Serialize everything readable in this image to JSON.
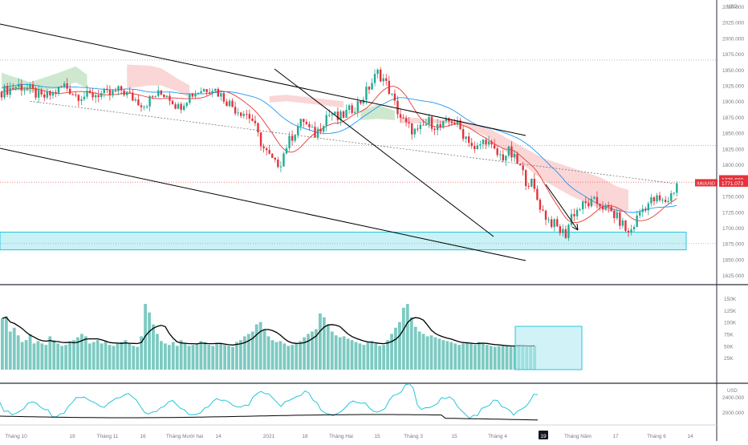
{
  "chart_data": {
    "type": "candlestick",
    "symbol": "XAUUSD",
    "currency": "USD",
    "colors": {
      "up": "#22ab94",
      "down": "#e5323b",
      "cloud_bull": "#a5d6a7",
      "cloud_bear": "#f7b5b5",
      "kijun": "#e53935",
      "tenkan": "#2196f3",
      "zone": "#b2ebf2",
      "zone_border": "#26c6da",
      "volume": "#26a69a",
      "volume_ma": "#000000",
      "osc_cyan": "#26c6da",
      "osc_black": "#000000",
      "trend": "#000000"
    },
    "price_axis": {
      "ylim": [
        1610,
        2060
      ],
      "ticks": [
        "2050.000",
        "2025.000",
        "2000.000",
        "1975.000",
        "1950.000",
        "1925.000",
        "1900.000",
        "1875.000",
        "1850.000",
        "1825.000",
        "1800.000",
        "1775.000",
        "1750.000",
        "1725.000",
        "1700.000",
        "1675.000",
        "1650.000",
        "1625.000"
      ],
      "last_price_label": "1776.680",
      "symbol_label": "XAUUSD",
      "secondary_label": "1771.073"
    },
    "volume_axis": {
      "ylim": [
        0,
        160000
      ],
      "ticks": [
        "150K",
        "125K",
        "100K",
        "75K",
        "50K",
        "25K"
      ]
    },
    "osc_axis": {
      "unit_label": "USD",
      "ticks": [
        "2400.000",
        "2000.000"
      ]
    },
    "x_axis": {
      "ticks": [
        "Tháng 10",
        "19",
        "Tháng 11",
        "16",
        "Tháng Mười hai",
        "14",
        "2021",
        "18",
        "Tháng Hai",
        "15",
        "Tháng 3",
        "15",
        "Tháng 4",
        "19",
        "Tháng Năm",
        "17",
        "Tháng 6",
        "14"
      ],
      "highlighted_tick": "19"
    },
    "price_path": [
      [
        0,
        1915
      ],
      [
        6,
        1925
      ],
      [
        10,
        1918
      ],
      [
        14,
        1905
      ],
      [
        18,
        1912
      ],
      [
        22,
        1925
      ],
      [
        26,
        1910
      ],
      [
        30,
        1908
      ],
      [
        34,
        1912
      ],
      [
        38,
        1910
      ],
      [
        42,
        1918
      ],
      [
        46,
        1905
      ],
      [
        50,
        1895
      ],
      [
        54,
        1910
      ],
      [
        58,
        1912
      ],
      [
        62,
        1890
      ],
      [
        66,
        1910
      ],
      [
        70,
        1918
      ],
      [
        74,
        1922
      ],
      [
        78,
        1905
      ],
      [
        82,
        1888
      ],
      [
        86,
        1880
      ],
      [
        88,
        1870
      ],
      [
        90,
        1845
      ],
      [
        92,
        1825
      ],
      [
        94,
        1812
      ],
      [
        96,
        1800
      ],
      [
        98,
        1805
      ],
      [
        100,
        1830
      ],
      [
        102,
        1845
      ],
      [
        104,
        1860
      ],
      [
        106,
        1870
      ],
      [
        108,
        1855
      ],
      [
        110,
        1848
      ],
      [
        112,
        1860
      ],
      [
        114,
        1878
      ],
      [
        116,
        1880
      ],
      [
        118,
        1872
      ],
      [
        120,
        1878
      ],
      [
        122,
        1885
      ],
      [
        124,
        1892
      ],
      [
        126,
        1900
      ],
      [
        128,
        1915
      ],
      [
        130,
        1930
      ],
      [
        132,
        1945
      ],
      [
        134,
        1935
      ],
      [
        136,
        1918
      ],
      [
        138,
        1895
      ],
      [
        140,
        1875
      ],
      [
        142,
        1862
      ],
      [
        144,
        1855
      ],
      [
        146,
        1850
      ],
      [
        148,
        1860
      ],
      [
        150,
        1868
      ],
      [
        152,
        1862
      ],
      [
        154,
        1858
      ],
      [
        156,
        1865
      ],
      [
        158,
        1870
      ],
      [
        160,
        1862
      ],
      [
        162,
        1848
      ],
      [
        164,
        1840
      ],
      [
        166,
        1820
      ],
      [
        168,
        1832
      ],
      [
        170,
        1840
      ],
      [
        172,
        1825
      ],
      [
        174,
        1815
      ],
      [
        176,
        1812
      ],
      [
        178,
        1820
      ],
      [
        180,
        1808
      ],
      [
        182,
        1795
      ],
      [
        184,
        1775
      ],
      [
        186,
        1770
      ],
      [
        188,
        1745
      ],
      [
        190,
        1725
      ],
      [
        192,
        1712
      ],
      [
        194,
        1705
      ],
      [
        196,
        1695
      ],
      [
        198,
        1690
      ],
      [
        200,
        1720
      ],
      [
        202,
        1728
      ],
      [
        204,
        1735
      ],
      [
        206,
        1738
      ],
      [
        208,
        1740
      ],
      [
        210,
        1738
      ],
      [
        212,
        1730
      ],
      [
        214,
        1725
      ],
      [
        216,
        1715
      ],
      [
        218,
        1705
      ],
      [
        220,
        1690
      ],
      [
        222,
        1705
      ],
      [
        224,
        1725
      ],
      [
        226,
        1735
      ],
      [
        228,
        1742
      ],
      [
        230,
        1745
      ],
      [
        232,
        1740
      ],
      [
        234,
        1745
      ],
      [
        236,
        1760
      ],
      [
        237,
        1772
      ]
    ],
    "volume": [
      108000,
      112000,
      80000,
      88000,
      72000,
      58000,
      62000,
      75000,
      55000,
      60000,
      55000,
      52000,
      70000,
      62000,
      55000,
      50000,
      52000,
      58000,
      62000,
      68000,
      75000,
      70000,
      55000,
      58000,
      62000,
      55000,
      60000,
      52000,
      50000,
      55000,
      58000,
      62000,
      55000,
      50000,
      48000,
      70000,
      138000,
      120000,
      95000,
      75000,
      60000,
      55000,
      52000,
      58000,
      50000,
      62000,
      55000,
      50000,
      52000,
      55000,
      60000,
      58000,
      52000,
      50000,
      55000,
      55000,
      52000,
      50000,
      48000,
      58000,
      62000,
      70000,
      75000,
      80000,
      95000,
      100000,
      85000,
      70000,
      62000,
      58000,
      60000,
      55000,
      50000,
      52000,
      55000,
      60000,
      68000,
      75000,
      80000,
      85000,
      118000,
      110000,
      95000,
      80000,
      72000,
      68000,
      70000,
      65000,
      62000,
      58000,
      55000,
      52000,
      58000,
      60000,
      55000,
      50000,
      52000,
      62000,
      75000,
      88000,
      100000,
      130000,
      138000,
      110000,
      90000,
      80000,
      75000,
      70000,
      72000,
      68000,
      65000,
      62000,
      60000,
      58000,
      55000,
      52000,
      55000,
      58000,
      55000,
      52000,
      58000,
      55000,
      52000,
      50000,
      48000,
      50000,
      52000,
      50000,
      48000,
      50000,
      52000,
      50000,
      48000,
      50000,
      50000
    ],
    "annotations": [
      "descending channel",
      "falling trendline",
      "ichimoku cloud",
      "projected down arrow",
      "support zone 1665–1693",
      "volume box"
    ]
  }
}
